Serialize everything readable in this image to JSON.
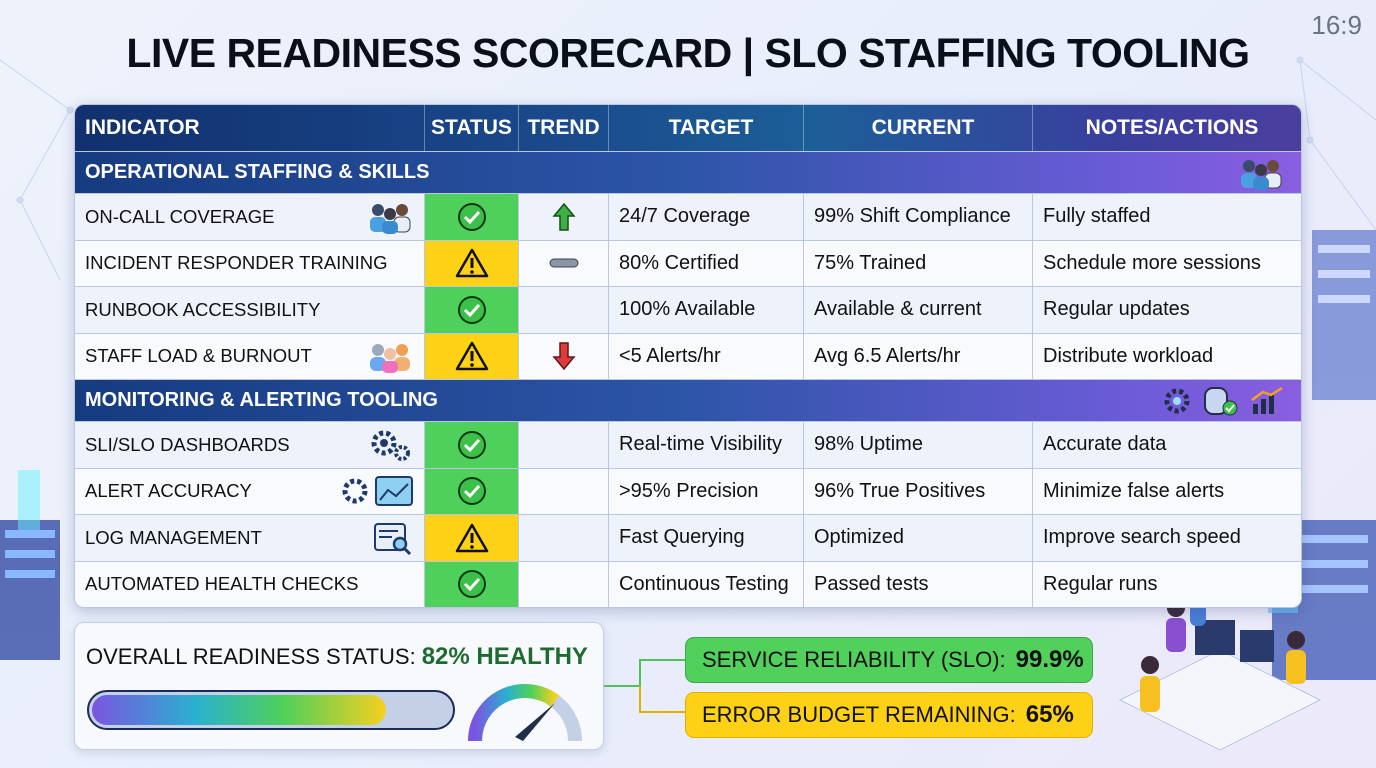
{
  "title": "LIVE READINESS SCORECARD | SLO STAFFING TOOLING",
  "aspect_label": "16:9",
  "colors": {
    "ok": "#4fd05a",
    "warn": "#fcd116",
    "header": "#12306e",
    "healthy_text": "#1e6b30"
  },
  "table": {
    "headers": [
      "INDICATOR",
      "STATUS",
      "TREND",
      "TARGET",
      "CURRENT",
      "NOTES/ACTIONS"
    ],
    "sections": [
      {
        "title": "OPERATIONAL STAFFING & SKILLS",
        "icons": [
          "team-icon"
        ],
        "rows": [
          {
            "indicator": "ON-CALL COVERAGE",
            "icon": "team-icon",
            "status": "ok",
            "trend": "up",
            "target": "24/7 Coverage",
            "current": "99% Shift Compliance",
            "notes": "Fully staffed"
          },
          {
            "indicator": "INCIDENT RESPONDER TRAINING",
            "icon": "",
            "status": "warn",
            "trend": "flat",
            "target": "80% Certified",
            "current": "75% Trained",
            "notes": "Schedule more sessions"
          },
          {
            "indicator": "RUNBOOK ACCESSIBILITY",
            "icon": "",
            "status": "ok",
            "trend": "",
            "target": "100% Available",
            "current": "Available & current",
            "notes": "Regular updates"
          },
          {
            "indicator": "STAFF LOAD & BURNOUT",
            "icon": "people-icon",
            "status": "warn",
            "trend": "down",
            "target": "<5 Alerts/hr",
            "current": "Avg 6.5 Alerts/hr",
            "notes": "Distribute workload"
          }
        ]
      },
      {
        "title": "MONITORING & ALERTING TOOLING",
        "icons": [
          "gear-icon",
          "database-check-icon",
          "chart-icon"
        ],
        "rows": [
          {
            "indicator": "SLI/SLO DASHBOARDS",
            "icon": "gears-icon",
            "status": "ok",
            "trend": "",
            "target": "Real-time Visibility",
            "current": "98% Uptime",
            "notes": "Accurate data"
          },
          {
            "indicator": "ALERT ACCURACY",
            "icon": "gear-dashboard-icon",
            "status": "ok",
            "trend": "",
            "target": ">95% Precision",
            "current": "96% True Positives",
            "notes": "Minimize false alerts"
          },
          {
            "indicator": "LOG MANAGEMENT",
            "icon": "log-search-icon",
            "status": "warn",
            "trend": "",
            "target": "Fast Querying",
            "current": "Optimized",
            "notes": "Improve search speed"
          },
          {
            "indicator": "AUTOMATED HEALTH CHECKS",
            "icon": "",
            "status": "ok",
            "trend": "",
            "target": "Continuous Testing",
            "current": "Passed tests",
            "notes": "Regular runs"
          }
        ]
      }
    ]
  },
  "overall": {
    "label": "OVERALL READINESS STATUS:",
    "value": "82% HEALTHY",
    "progress_percent": 82
  },
  "slo": {
    "label": "SERVICE RELIABILITY (SLO):",
    "value": "99.9%"
  },
  "error_budget": {
    "label": "ERROR BUDGET REMAINING:",
    "value": "65%"
  }
}
